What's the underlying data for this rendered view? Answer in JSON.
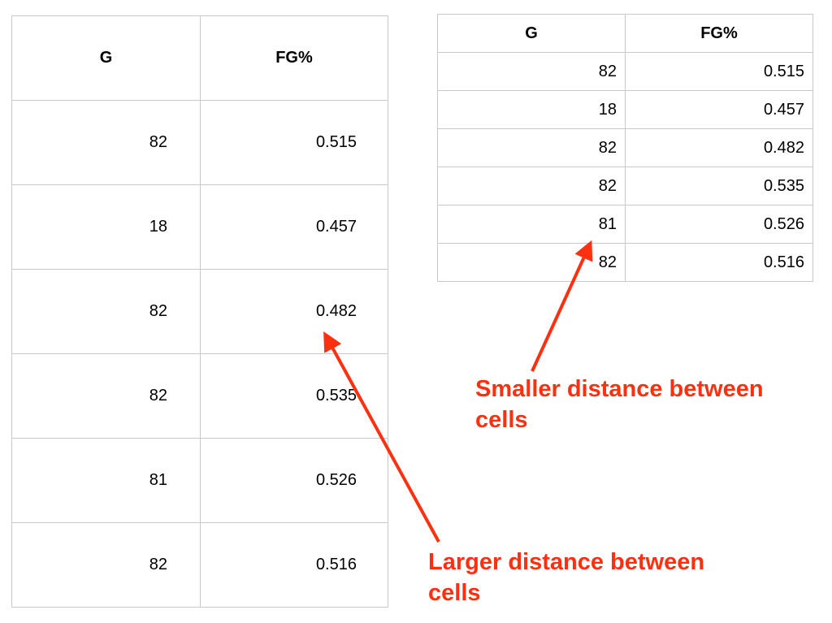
{
  "table_large": {
    "headers": [
      "G",
      "FG%"
    ],
    "rows": [
      [
        "82",
        "0.515"
      ],
      [
        "18",
        "0.457"
      ],
      [
        "82",
        "0.482"
      ],
      [
        "82",
        "0.535"
      ],
      [
        "81",
        "0.526"
      ],
      [
        "82",
        "0.516"
      ]
    ]
  },
  "table_small": {
    "headers": [
      "G",
      "FG%"
    ],
    "rows": [
      [
        "82",
        "0.515"
      ],
      [
        "18",
        "0.457"
      ],
      [
        "82",
        "0.482"
      ],
      [
        "82",
        "0.535"
      ],
      [
        "81",
        "0.526"
      ],
      [
        "82",
        "0.516"
      ]
    ]
  },
  "annotations": {
    "small": {
      "line1": "Smaller distance between",
      "line2": "cells"
    },
    "large": {
      "line1": "Larger distance between",
      "line2": "cells"
    }
  },
  "colors": {
    "annotation": "#ff3010",
    "border": "#c9c9c9"
  }
}
